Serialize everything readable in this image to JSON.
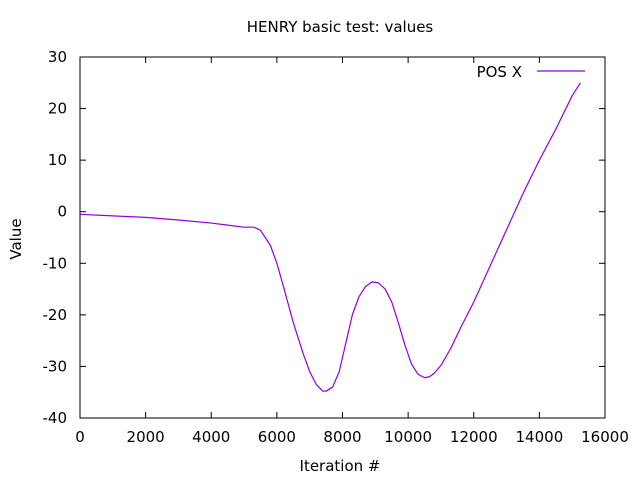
{
  "chart_data": {
    "type": "line",
    "title": "HENRY basic test: values",
    "xlabel": "Iteration #",
    "ylabel": "Value",
    "xlim": [
      0,
      16000
    ],
    "ylim": [
      -40,
      30
    ],
    "xticks": [
      0,
      2000,
      4000,
      6000,
      8000,
      10000,
      12000,
      14000,
      16000
    ],
    "yticks": [
      -40,
      -30,
      -20,
      -10,
      0,
      10,
      20,
      30
    ],
    "grid": false,
    "legend": "top-right",
    "series": [
      {
        "name": "POS X",
        "color": "#9400d3",
        "x": [
          0,
          1000,
          2000,
          3000,
          4000,
          4500,
          5000,
          5300,
          5500,
          5800,
          6000,
          6200,
          6500,
          6800,
          7000,
          7200,
          7400,
          7500,
          7700,
          7900,
          8100,
          8300,
          8500,
          8700,
          8900,
          9100,
          9300,
          9500,
          9700,
          9900,
          10100,
          10300,
          10500,
          10650,
          10800,
          11000,
          11300,
          11600,
          12000,
          12500,
          13000,
          13500,
          14000,
          14500,
          15000,
          15250
        ],
        "y": [
          -0.5,
          -0.8,
          -1.1,
          -1.6,
          -2.2,
          -2.6,
          -3.0,
          -3.0,
          -3.6,
          -6.5,
          -10.0,
          -14.5,
          -21.5,
          -27.5,
          -31.0,
          -33.5,
          -34.8,
          -34.8,
          -34.0,
          -31.0,
          -25.5,
          -20.0,
          -16.5,
          -14.5,
          -13.6,
          -13.8,
          -15.0,
          -17.5,
          -21.5,
          -25.8,
          -29.5,
          -31.5,
          -32.2,
          -32.0,
          -31.3,
          -29.8,
          -26.5,
          -22.5,
          -17.5,
          -10.5,
          -3.5,
          3.5,
          10.0,
          16.0,
          22.5,
          25.0
        ]
      }
    ]
  }
}
